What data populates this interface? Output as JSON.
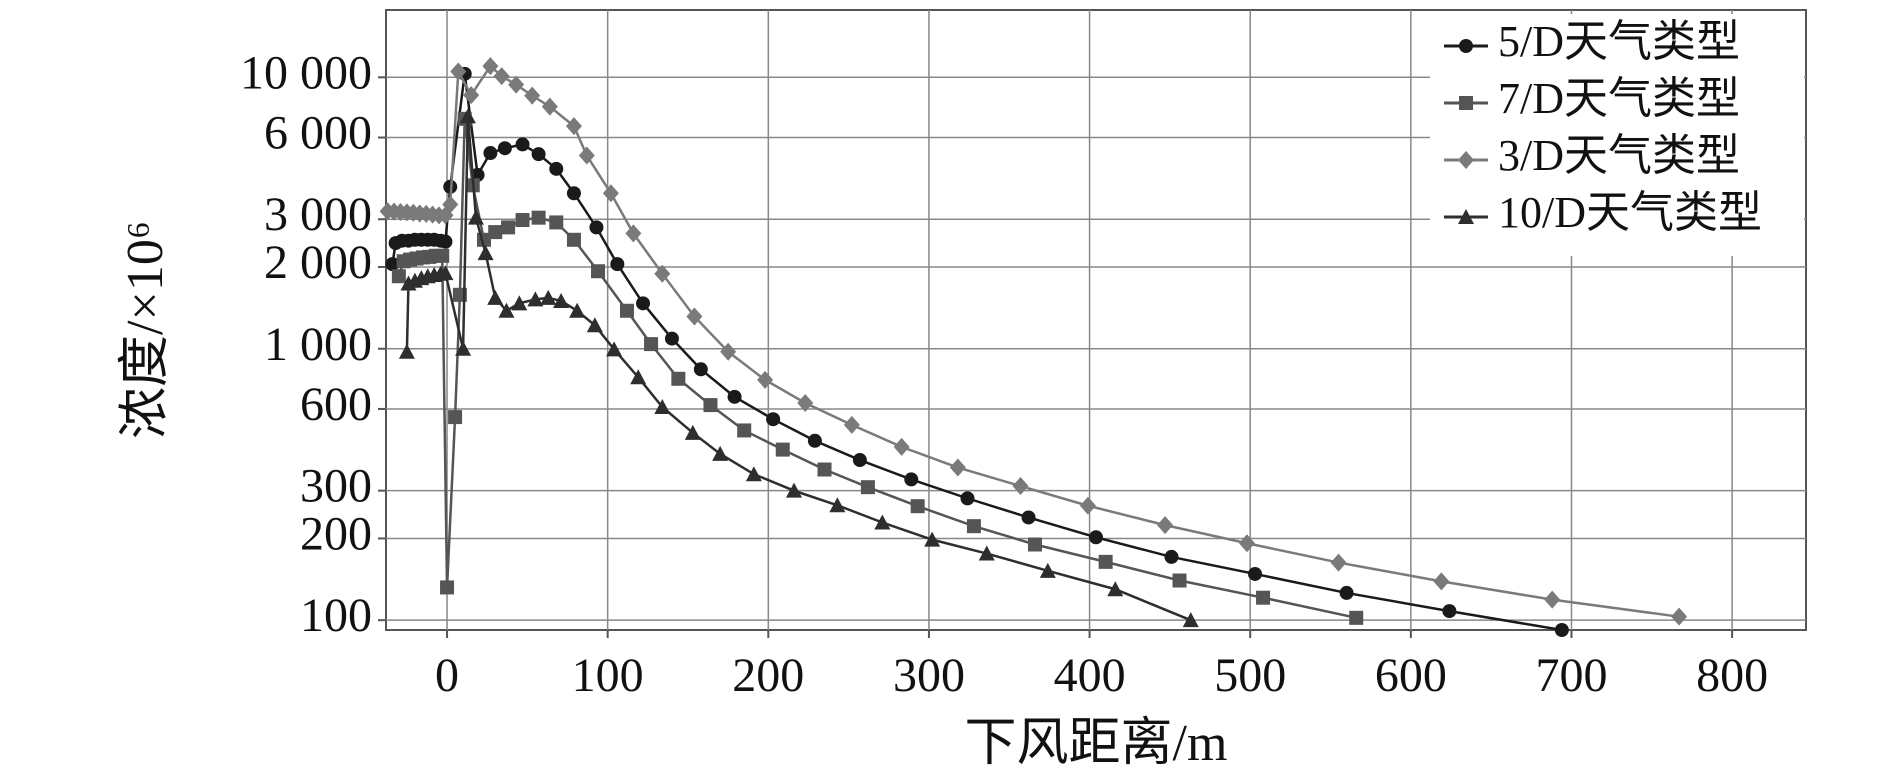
{
  "chart_data": {
    "type": "line",
    "x_label": "下风距离/m",
    "y_label": "浓度/×10⁶",
    "log_y": true,
    "grid": true,
    "legend": "upper right",
    "xlim": [
      -38,
      846
    ],
    "ylim": [
      92,
      17700
    ],
    "xticks": [
      0,
      100,
      200,
      300,
      400,
      500,
      600,
      700,
      800
    ],
    "yticks": [
      100,
      200,
      300,
      600,
      {
        "value": 1000,
        "label": "1 000"
      },
      {
        "value": 2000,
        "label": "2 000"
      },
      {
        "value": 3000,
        "label": "3 000"
      },
      {
        "value": 6000,
        "label": "6 000"
      },
      {
        "value": 10000,
        "label": "10 000"
      }
    ],
    "series": [
      {
        "name": "5/D天气类型",
        "color": "#1a1a1a",
        "marker": "circle",
        "x": [
          -34,
          -32,
          -28,
          -24,
          -20,
          -16,
          -12,
          -8,
          -4,
          -1,
          2,
          11,
          19,
          27,
          36,
          47,
          57,
          68,
          79,
          93,
          106,
          122,
          140,
          158,
          179,
          203,
          229,
          257,
          289,
          324,
          362,
          404,
          451,
          503,
          560,
          624,
          694
        ],
        "values": [
          2050,
          2450,
          2500,
          2500,
          2520,
          2520,
          2520,
          2520,
          2500,
          2480,
          3950,
          10300,
          4370,
          5260,
          5480,
          5660,
          5210,
          4600,
          3740,
          2800,
          2050,
          1470,
          1090,
          840,
          665,
          550,
          458,
          389,
          330,
          281,
          239,
          202,
          171,
          148,
          126,
          108,
          92
        ]
      },
      {
        "name": "7/D天气类型",
        "color": "#555555",
        "marker": "square",
        "x": [
          -30,
          -27,
          -23,
          -19,
          -15,
          -11,
          -7,
          -3,
          0,
          5,
          8,
          11,
          16,
          23,
          30,
          38,
          47,
          57,
          68,
          79,
          94,
          112,
          127,
          144,
          164,
          185,
          209,
          235,
          262,
          293,
          328,
          366,
          410,
          456,
          508,
          566
        ],
        "values": [
          1850,
          2100,
          2130,
          2150,
          2170,
          2180,
          2200,
          2200,
          132,
          560,
          1580,
          7030,
          4000,
          2520,
          2690,
          2800,
          2980,
          3040,
          2920,
          2520,
          1930,
          1380,
          1040,
          775,
          620,
          500,
          425,
          359,
          309,
          263,
          222,
          190,
          164,
          140,
          121,
          102
        ]
      },
      {
        "name": "3/D天气类型",
        "color": "#7a7a7a",
        "marker": "diamond",
        "x": [
          -37,
          -33,
          -29,
          -25,
          -21,
          -17,
          -13,
          -9,
          -5,
          -1,
          2,
          7,
          15,
          27,
          34,
          43,
          53,
          64,
          79,
          87,
          102,
          116,
          134,
          154,
          175,
          198,
          223,
          252,
          283,
          318,
          357,
          399,
          447,
          498,
          555,
          619,
          688,
          767
        ],
        "values": [
          3210,
          3200,
          3190,
          3180,
          3170,
          3150,
          3140,
          3120,
          3100,
          3100,
          3400,
          10500,
          8600,
          11000,
          10100,
          9400,
          8560,
          7800,
          6610,
          5150,
          3740,
          2660,
          1890,
          1315,
          975,
          768,
          631,
          524,
          435,
          365,
          312,
          264,
          224,
          192,
          163,
          139,
          119,
          103
        ]
      },
      {
        "name": "10/D天气类型",
        "color": "#2e2e2e",
        "marker": "triangle",
        "x": [
          -25,
          -24,
          -20,
          -16,
          -12,
          -8,
          -4,
          -1,
          10,
          13,
          18,
          24,
          30,
          37,
          45,
          55,
          63,
          71,
          81,
          92,
          104,
          119,
          134,
          153,
          170,
          191,
          216,
          243,
          271,
          302,
          336,
          374,
          416,
          463
        ],
        "values": [
          975,
          1740,
          1780,
          1820,
          1850,
          1870,
          1890,
          1900,
          1000,
          7180,
          3040,
          2250,
          1540,
          1380,
          1470,
          1520,
          1540,
          1500,
          1380,
          1220,
          995,
          785,
          610,
          490,
          410,
          345,
          300,
          265,
          229,
          198,
          176,
          152,
          130,
          100
        ]
      }
    ]
  }
}
